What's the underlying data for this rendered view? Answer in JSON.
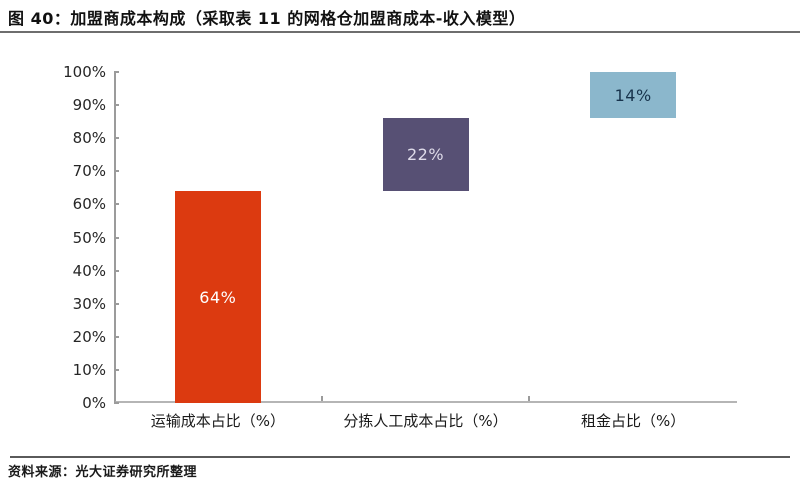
{
  "figure": {
    "title": "图 40：加盟商成本构成（采取表 11 的网格仓加盟商成本-收入模型）",
    "source": "资料来源：光大证券研究所整理"
  },
  "chart_data": {
    "type": "bar",
    "subtype": "floating-stacked-waterfall",
    "title": "加盟商成本构成（采取表 11 的网格仓加盟商成本-收入模型）",
    "categories": [
      "运输成本占比（%）",
      "分拣人工成本占比（%）",
      "租金占比（%）"
    ],
    "series": [
      {
        "name": "运输成本占比",
        "value": 64,
        "start": 0,
        "end": 64,
        "label": "64%",
        "bar_color": "#DC3A10",
        "label_color": "#FFFFFF"
      },
      {
        "name": "分拣人工成本占比",
        "value": 22,
        "start": 64,
        "end": 86,
        "label": "22%",
        "bar_color": "#575074",
        "label_color": "#DFDCEA"
      },
      {
        "name": "租金占比",
        "value": 14,
        "start": 86,
        "end": 100,
        "label": "14%",
        "bar_color": "#8BB7CC",
        "label_color": "#17334C"
      }
    ],
    "xlabel": "",
    "ylabel": "",
    "ylim": [
      0,
      100
    ],
    "ytick_labels": [
      "0%",
      "10%",
      "20%",
      "30%",
      "40%",
      "50%",
      "60%",
      "70%",
      "80%",
      "90%",
      "100%"
    ],
    "grid": false,
    "legend": "none"
  },
  "colors": {
    "background": "#FFFFFF",
    "axis": "#9B9B9B",
    "text": "#1A1A1A",
    "title_rule": "#6E6E6E",
    "source_rule": "#5A5A5A"
  }
}
